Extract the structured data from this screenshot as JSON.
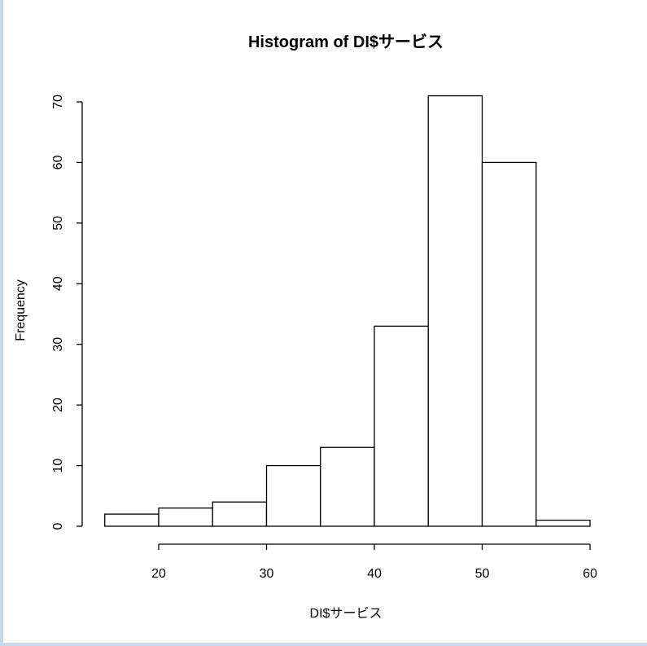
{
  "chart_data": {
    "type": "bar",
    "title": "Histogram of DI$サービス",
    "xlabel": "DI$サービス",
    "ylabel": "Frequency",
    "bins": [
      {
        "from": 15,
        "to": 20,
        "count": 2
      },
      {
        "from": 20,
        "to": 25,
        "count": 3
      },
      {
        "from": 25,
        "to": 30,
        "count": 4
      },
      {
        "from": 30,
        "to": 35,
        "count": 10
      },
      {
        "from": 35,
        "to": 40,
        "count": 13
      },
      {
        "from": 40,
        "to": 45,
        "count": 33
      },
      {
        "from": 45,
        "to": 50,
        "count": 71
      },
      {
        "from": 50,
        "to": 55,
        "count": 60
      },
      {
        "from": 55,
        "to": 60,
        "count": 1
      }
    ],
    "xticks": [
      "20",
      "30",
      "40",
      "50",
      "60"
    ],
    "yticks": [
      "0",
      "10",
      "20",
      "30",
      "40",
      "50",
      "60",
      "70"
    ],
    "xlim": [
      15,
      60
    ],
    "ylim": [
      0,
      70
    ],
    "grid": false
  }
}
